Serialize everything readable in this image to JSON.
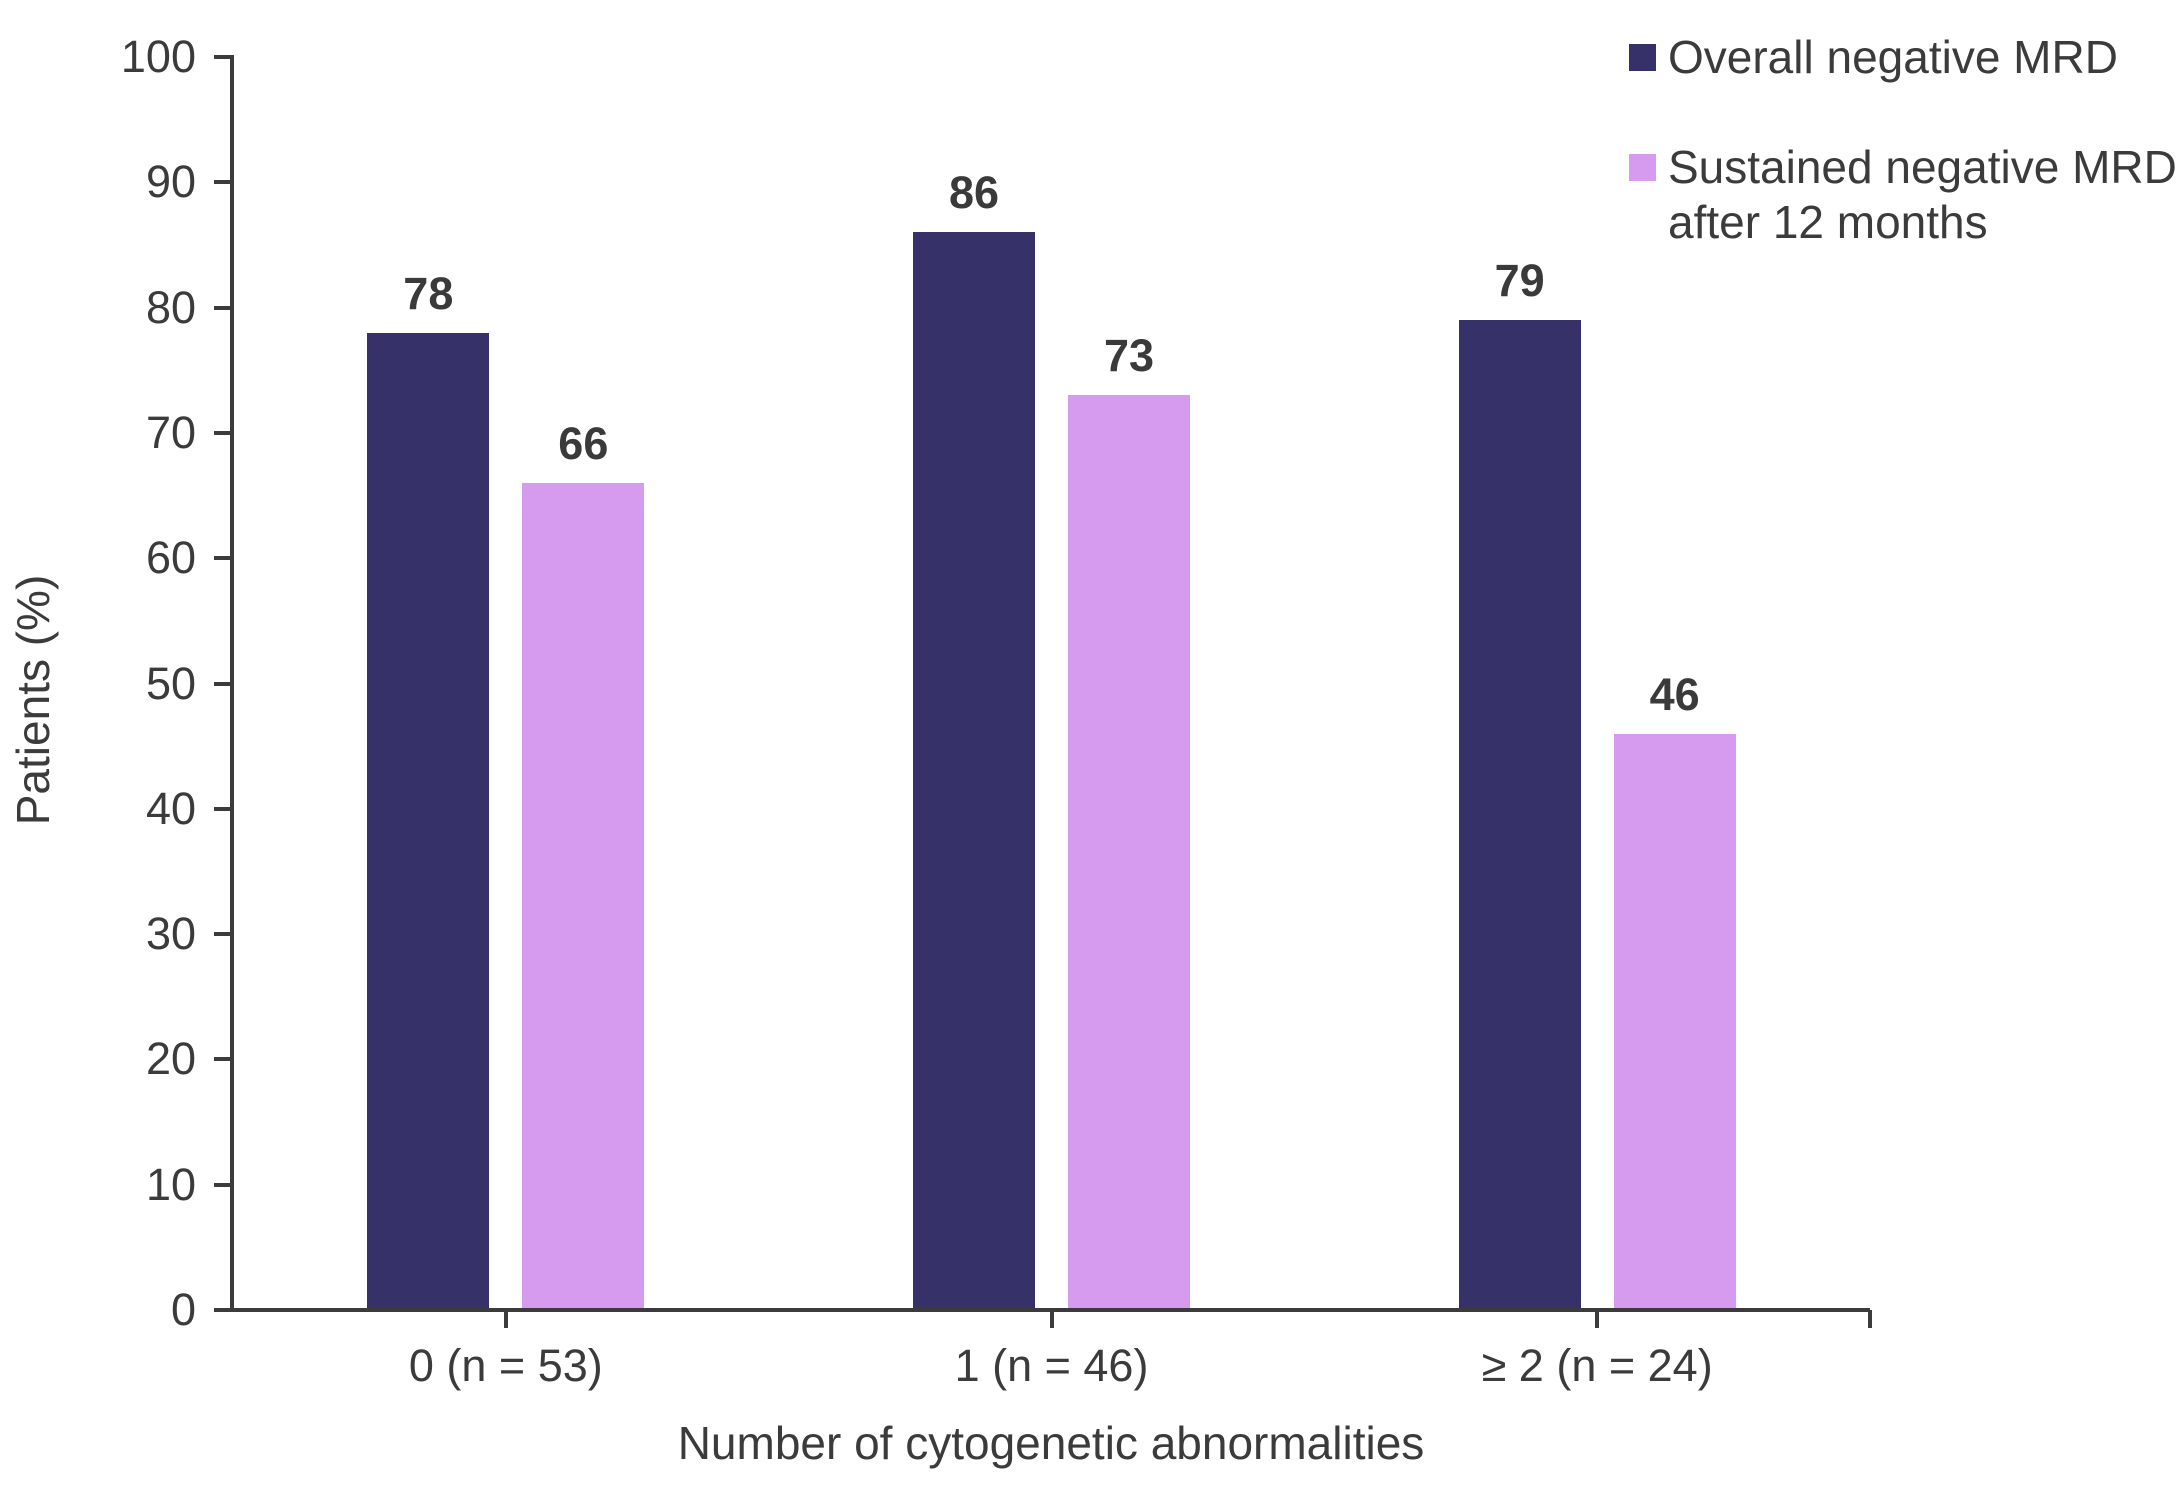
{
  "chart_data": {
    "type": "bar",
    "title": "",
    "xlabel": "Number of cytogenetic abnormalities",
    "ylabel": "Patients (%)",
    "categories": [
      "0 (n = 53)",
      "1 (n = 46)",
      "≥ 2 (n = 24)"
    ],
    "series": [
      {
        "name": "Overall negative MRD",
        "color": "#363169",
        "values": [
          78,
          86,
          79
        ]
      },
      {
        "name": "Sustained negative MRD after 12 months",
        "color": "#D69AEE",
        "values": [
          66,
          73,
          46
        ]
      }
    ],
    "bar_value_labels_shown": true,
    "ylim": [
      0,
      100
    ],
    "ytick_step": 10,
    "yticks": [
      0,
      10,
      20,
      30,
      40,
      50,
      60,
      70,
      80,
      90,
      100
    ],
    "grid": false,
    "legend_position": "top-right"
  },
  "legend": {
    "items": [
      {
        "lines": [
          "Overall negative MRD"
        ],
        "color": "#363169"
      },
      {
        "lines": [
          "Sustained negative MRD",
          "after 12 months"
        ],
        "color": "#D69AEE"
      }
    ]
  },
  "colors": {
    "series_overall": "#363169",
    "series_sustained": "#D69AEE",
    "axis": "#3B3B3B",
    "text": "#3B3B3B",
    "background": "#FFFFFF"
  }
}
